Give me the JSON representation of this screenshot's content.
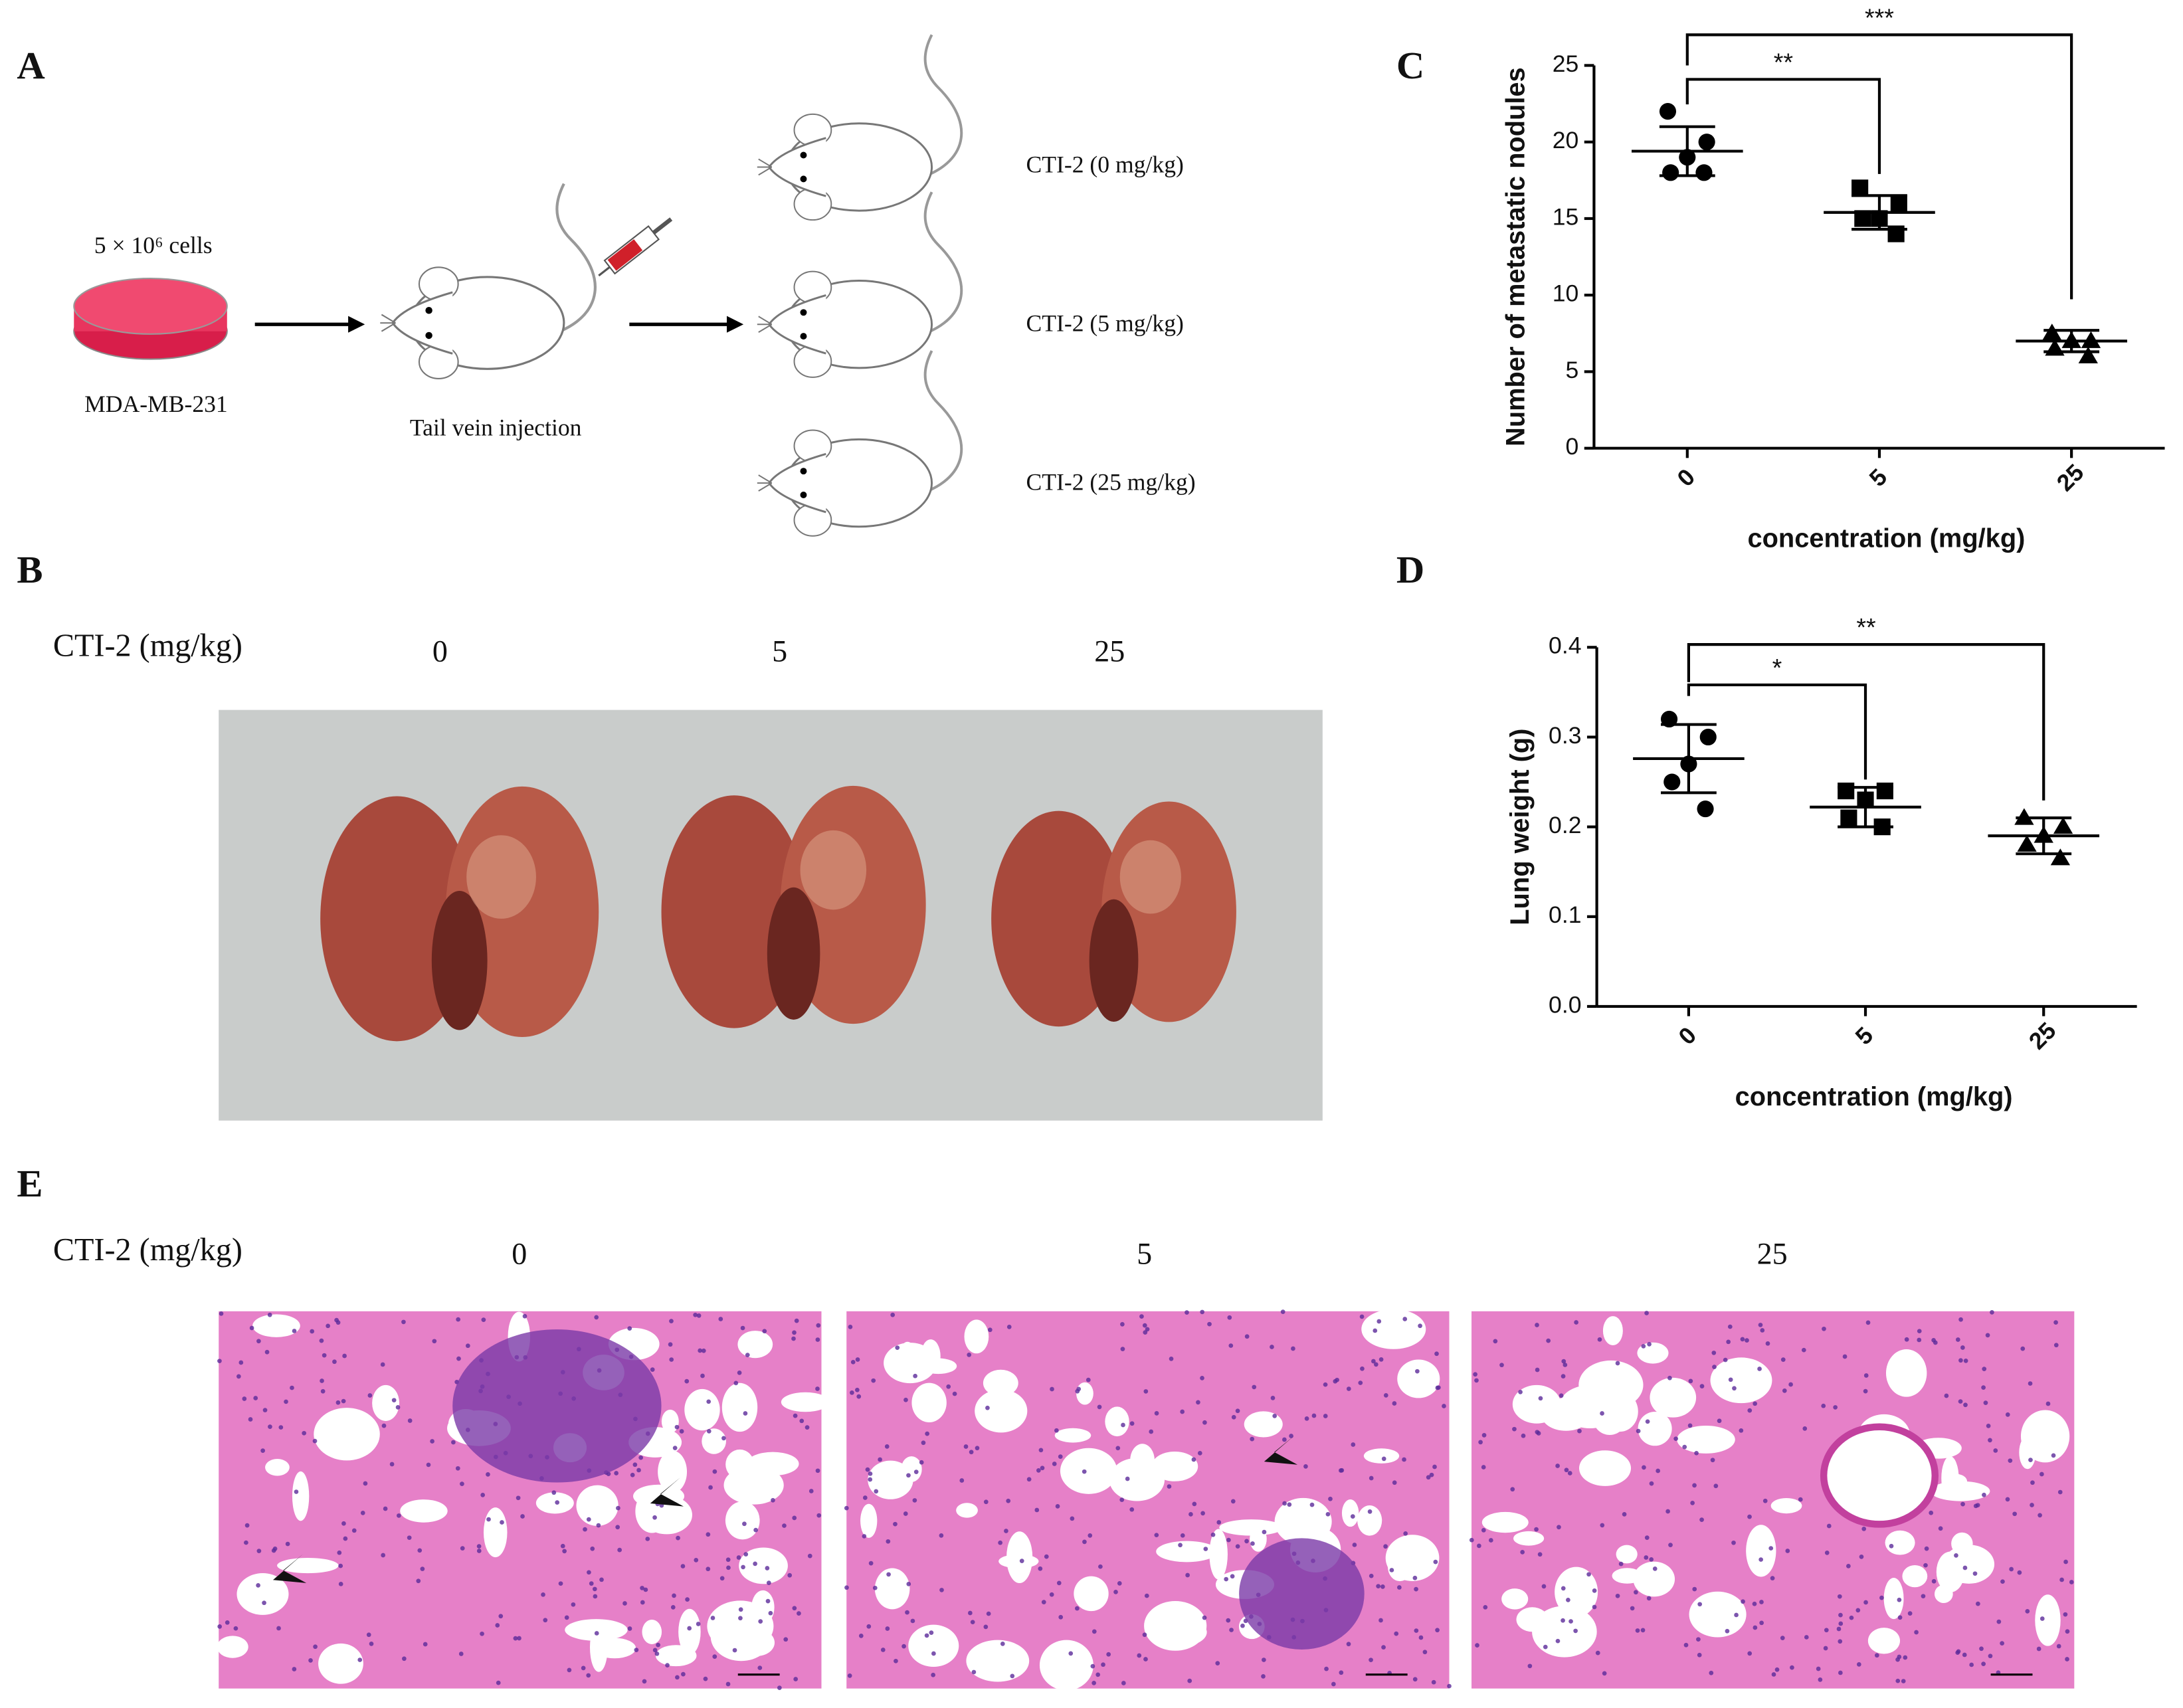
{
  "panel_labels": [
    "A",
    "B",
    "C",
    "D",
    "E"
  ],
  "panel_a": {
    "cells": "5 × 10⁶ cells",
    "cell_line": "MDA-MB-231",
    "injection": "Tail vein injection",
    "groups": [
      "CTI-2 (0 mg/kg)",
      "CTI-2 (5 mg/kg)",
      "CTI-2 (25 mg/kg)"
    ]
  },
  "panel_b": {
    "label": "CTI-2 (mg/kg)",
    "doses": [
      "0",
      "5",
      "25"
    ]
  },
  "panel_e": {
    "label": "CTI-2 (mg/kg)",
    "doses": [
      "0",
      "5",
      "25"
    ]
  },
  "chart_data": [
    {
      "type": "dotplot",
      "ylabel": "Number of metastatic nodules",
      "xlabel": "concentration (mg/kg)",
      "categories": [
        "0",
        "5",
        "25"
      ],
      "values": [
        [
          22,
          20,
          19,
          18,
          18
        ],
        [
          17,
          16,
          15,
          15,
          14
        ],
        [
          7.5,
          7,
          7,
          6.5,
          6
        ]
      ],
      "means": [
        19.4,
        15.4,
        7.0
      ],
      "sd": [
        1.6,
        1.1,
        0.7
      ],
      "markers": [
        "circle",
        "square",
        "triangle"
      ],
      "color": "#000000",
      "ylim": [
        0,
        25
      ],
      "yticks": [
        0,
        5,
        10,
        15,
        20,
        25
      ],
      "annotations": [
        "**",
        "***"
      ]
    },
    {
      "type": "dotplot",
      "ylabel": "Lung weight (g)",
      "xlabel": "concentration (mg/kg)",
      "categories": [
        "0",
        "5",
        "25"
      ],
      "values": [
        [
          0.32,
          0.3,
          0.27,
          0.25,
          0.22
        ],
        [
          0.24,
          0.24,
          0.23,
          0.21,
          0.2
        ],
        [
          0.21,
          0.2,
          0.19,
          0.18,
          0.165
        ]
      ],
      "means": [
        0.276,
        0.222,
        0.19
      ],
      "sd": [
        0.038,
        0.022,
        0.02
      ],
      "markers": [
        "circle",
        "square",
        "triangle"
      ],
      "color": "#000000",
      "ylim": [
        0,
        0.4
      ],
      "yticks": [
        {
          "value": 0,
          "label": "0.0"
        },
        0.1,
        0.2,
        0.3,
        0.4
      ],
      "annotations": [
        "*",
        "**"
      ]
    }
  ]
}
